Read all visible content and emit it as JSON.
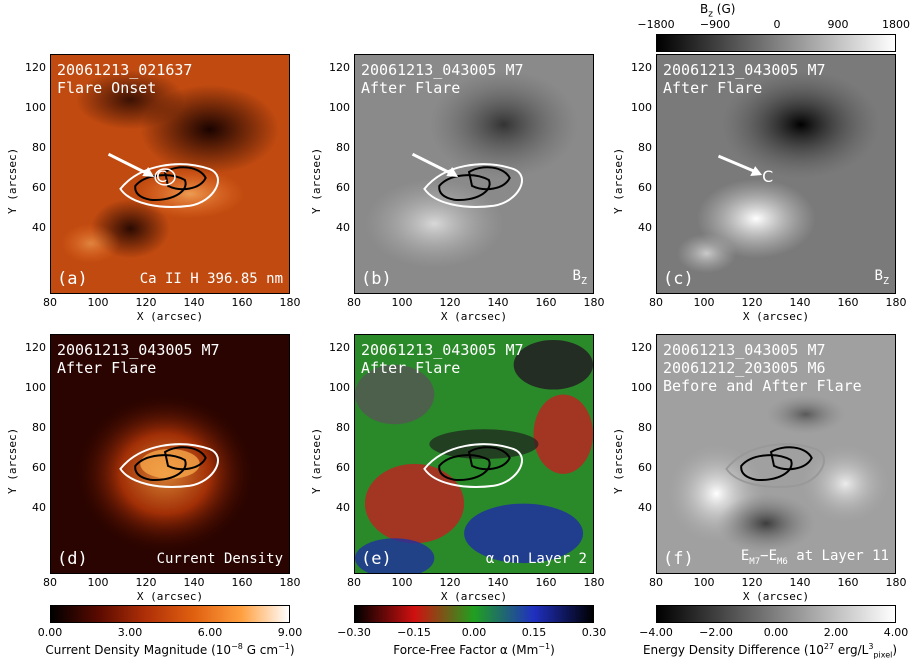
{
  "axes": {
    "x_label": "X (arcsec)",
    "y_label": "Y (arcsec)",
    "x_ticks": [
      "80",
      "100",
      "120",
      "140",
      "160",
      "180"
    ],
    "y_ticks": [
      "120",
      "100",
      "80",
      "60",
      "40"
    ]
  },
  "panels": [
    {
      "line1": "20061213_021637",
      "line2": "Flare Onset",
      "line3": "",
      "tag": "(a)",
      "note": "Ca II H 396.85 nm"
    },
    {
      "line1": "20061213_043005 M7",
      "line2": "After Flare",
      "line3": "",
      "tag": "(b)",
      "note": "B",
      "note_sub": "Z"
    },
    {
      "line1": "20061213_043005 M7",
      "line2": "After Flare",
      "line3": "",
      "tag": "(c)",
      "note": "B",
      "note_sub": "Z"
    },
    {
      "line1": "20061213_043005 M7",
      "line2": "After Flare",
      "line3": "",
      "tag": "(d)",
      "note": "Current Density"
    },
    {
      "line1": "20061213_043005 M7",
      "line2": "After Flare",
      "line3": "",
      "tag": "(e)",
      "note": "α on Layer 2"
    },
    {
      "line1": "20061213_043005 M7",
      "line2": "20061212_203005 M6",
      "line3": "Before and After Flare",
      "tag": "(f)",
      "note": "E",
      "note_sub1": "M7",
      "note_mid": "−E",
      "note_sub2": "M6",
      "note_tail": " at Layer 11"
    }
  ],
  "colorbars": {
    "top": {
      "title": "B",
      "title_sub": "z",
      "title_unit": " (G)",
      "ticks": [
        "−1800",
        "−900",
        "0",
        "900",
        "1800"
      ]
    },
    "current": {
      "ticks": [
        "0.00",
        "3.00",
        "6.00",
        "9.00"
      ],
      "label": "Current Density Magnitude (10",
      "label_sup": "−8",
      "label_tail": " G cm",
      "label_sup2": "−1",
      "label_end": ")"
    },
    "alpha": {
      "ticks": [
        "−0.30",
        "−0.15",
        "0.00",
        "0.15",
        "0.30"
      ],
      "label": "Force-Free Factor α (Mm",
      "label_sup": "−1",
      "label_end": ")"
    },
    "energy": {
      "ticks": [
        "−4.00",
        "−2.00",
        "0.00",
        "2.00",
        "4.00"
      ],
      "label": "Energy Density Difference (10",
      "label_sup": "27",
      "label_tail": " erg/L",
      "label_sup2": "3",
      "label_sub2": "pixel",
      "label_end": ")"
    }
  },
  "marker_label": "C"
}
